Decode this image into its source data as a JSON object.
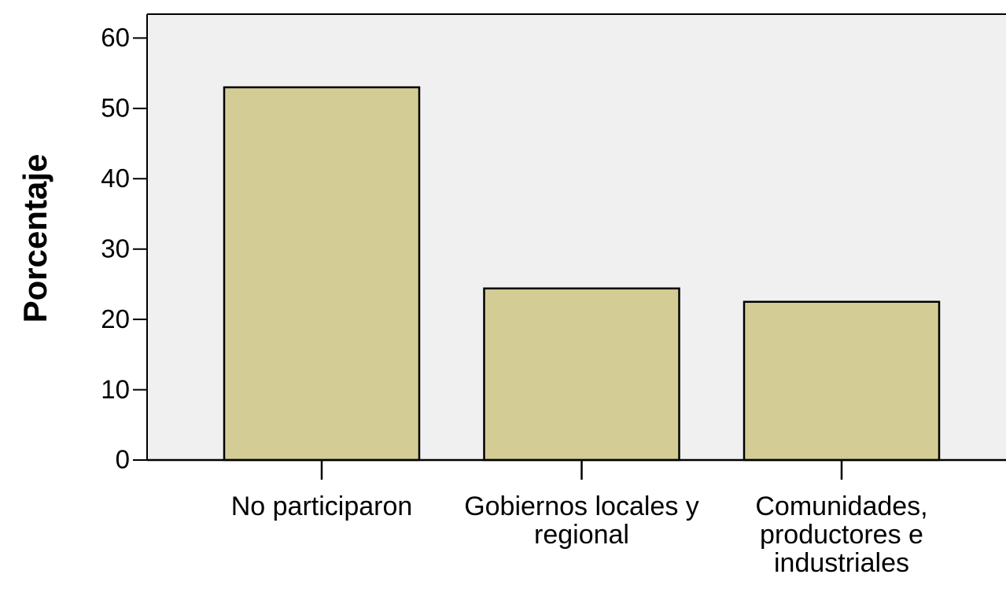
{
  "chart_data": {
    "type": "bar",
    "y_label": "Porcentaje",
    "categories": [
      "No participaron",
      "Gobiernos locales y regional",
      "Comunidades, productores e industriales"
    ],
    "values": [
      53,
      24.4,
      22.5
    ],
    "color": "#d3cd95",
    "ylim": [
      0,
      63.4
    ],
    "yticks": [
      0,
      10,
      20,
      30,
      40,
      50,
      60
    ]
  }
}
